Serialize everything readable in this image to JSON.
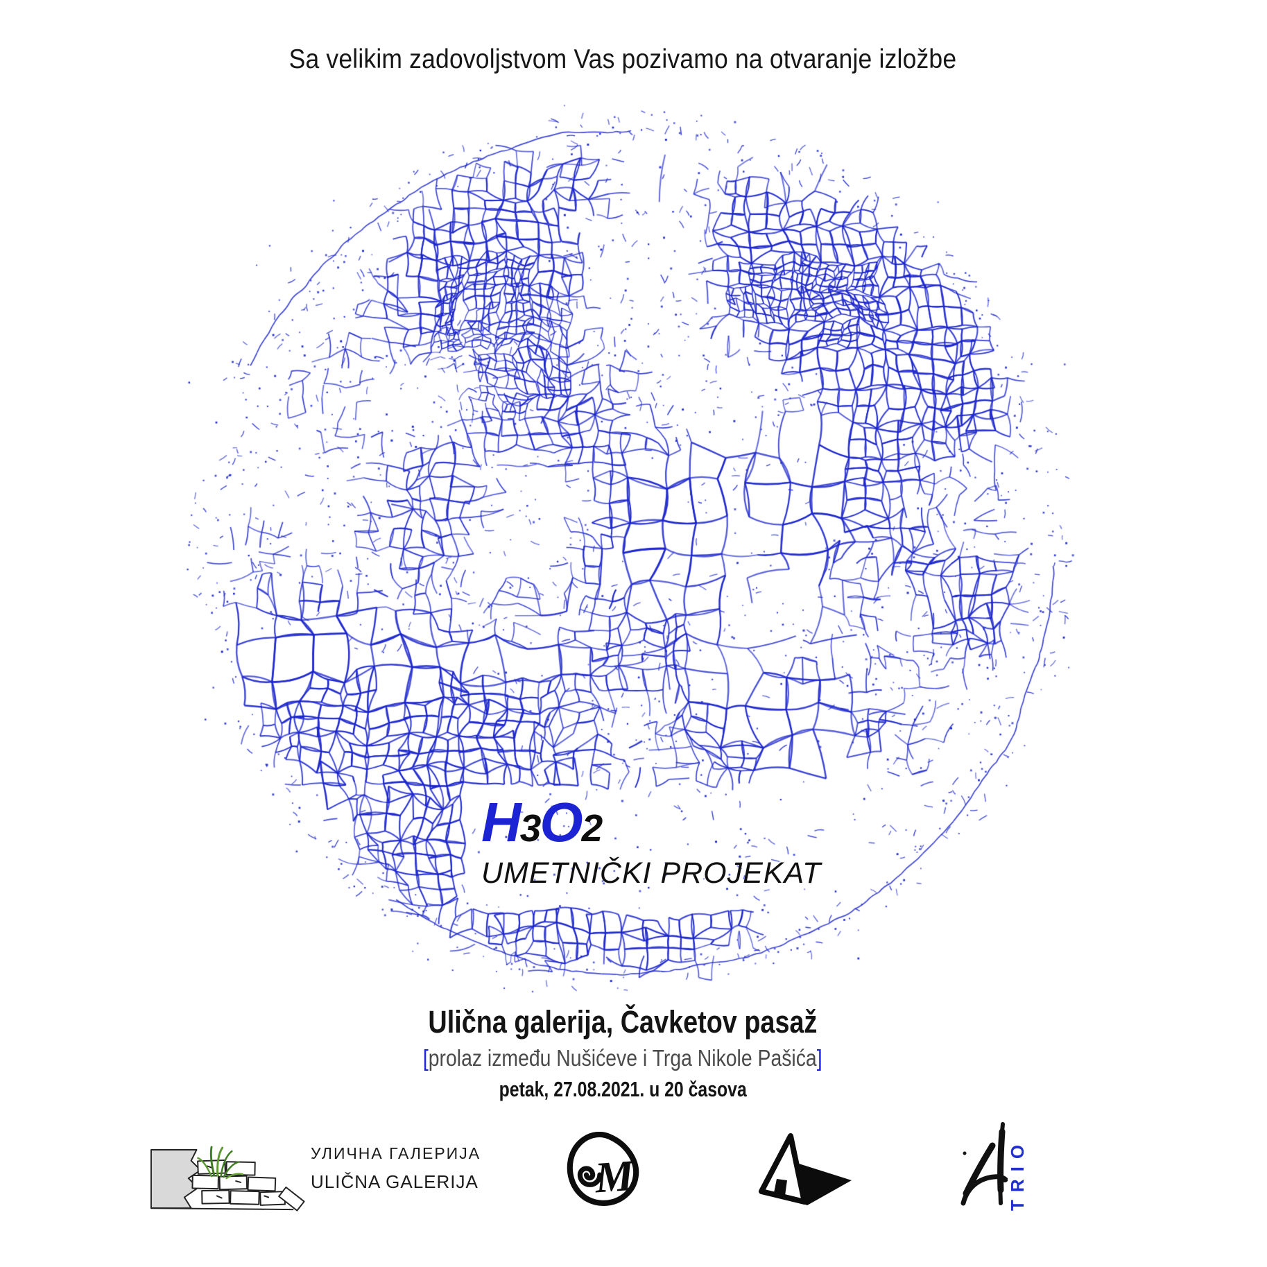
{
  "poster": {
    "invitation": "Sa velikim zadovoljstvom Vas pozivamo na otvaranje izložbe",
    "title": {
      "h": "H",
      "sub3": "3",
      "o": "O",
      "sub2": "2",
      "subtitle": "UMETNIČKI PROJEKAT"
    },
    "event": {
      "venue": "Ulična galerija, Čavketov pasaž",
      "bracket_open": "[",
      "location_note": "prolaz između Nušićeve i Trga Nikole Pašića",
      "bracket_close": "]",
      "datetime": "petak, 27.08.2021. u 20 časova"
    },
    "pattern_icon": "voronoi-crackle-circle",
    "colors": {
      "accent_blue": "#1c23d2",
      "pattern_blue": "#1a23c8",
      "ink": "#141414",
      "note_gray": "#4a4a4a"
    }
  },
  "footer": {
    "ulicna_galerija": {
      "icon": "brick-wall-grass-logo",
      "cyrillic": "УЛИЧНА ГАЛЕРИЈА",
      "latin": "ULIČNA GALERIJA"
    },
    "m_logo": {
      "icon": "calligraphic-m-leaf-logo",
      "letter": "M"
    },
    "mountain_logo": {
      "icon": "mountain-triangle-logo"
    },
    "a_trio": {
      "icon": "brush-a-logo",
      "text": "TRIO"
    }
  }
}
